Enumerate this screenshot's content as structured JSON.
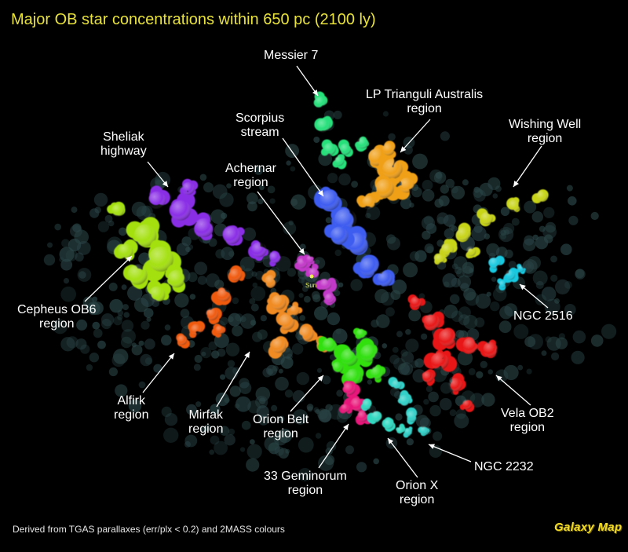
{
  "title": "Major OB star concentrations within 650 pc (2100 ly)",
  "footer": "Derived from TGAS parallaxes (err/plx < 0.2) and 2MASS colours",
  "brand": "Galaxy Map",
  "sun_label": "Sun",
  "regions": [
    {
      "id": "messier-7",
      "lines": [
        "Messier 7"
      ],
      "color": "#25e07a"
    },
    {
      "id": "lp-trianguli-australis",
      "lines": [
        "LP Trianguli Australis",
        "region"
      ],
      "color": "#f0a018"
    },
    {
      "id": "scorpius-stream",
      "lines": [
        "Scorpius",
        "stream"
      ],
      "color": "#3e5cf0"
    },
    {
      "id": "wishing-well",
      "lines": [
        "Wishing Well",
        "region"
      ],
      "color": "#c8d418"
    },
    {
      "id": "sheliak-highway",
      "lines": [
        "Sheliak",
        "highway"
      ],
      "color": "#8a2ee6"
    },
    {
      "id": "achernar",
      "lines": [
        "Achernar",
        "region"
      ],
      "color": "#c238c8"
    },
    {
      "id": "cepheus-ob6",
      "lines": [
        "Cepheus OB6",
        "region"
      ],
      "color": "#a4e010"
    },
    {
      "id": "ngc-2516",
      "lines": [
        "NGC 2516"
      ],
      "color": "#18c8e0"
    },
    {
      "id": "alfirk",
      "lines": [
        "Alfirk",
        "region"
      ],
      "color": "#f05a10"
    },
    {
      "id": "mirfak",
      "lines": [
        "Mirfak",
        "region"
      ],
      "color": "#f08a20"
    },
    {
      "id": "orion-belt",
      "lines": [
        "Orion Belt",
        "region"
      ],
      "color": "#30e010"
    },
    {
      "id": "vela-ob2",
      "lines": [
        "Vela OB2",
        "region"
      ],
      "color": "#e81818"
    },
    {
      "id": "ngc-2232",
      "lines": [
        "NGC 2232"
      ],
      "color": "#30d0c8"
    },
    {
      "id": "33-geminorum",
      "lines": [
        "33 Geminorum",
        "region"
      ],
      "color": "#e8187a"
    },
    {
      "id": "orion-x",
      "lines": [
        "Orion X",
        "region"
      ],
      "color": "#30d8c0"
    }
  ],
  "background_color": "#2a4446"
}
